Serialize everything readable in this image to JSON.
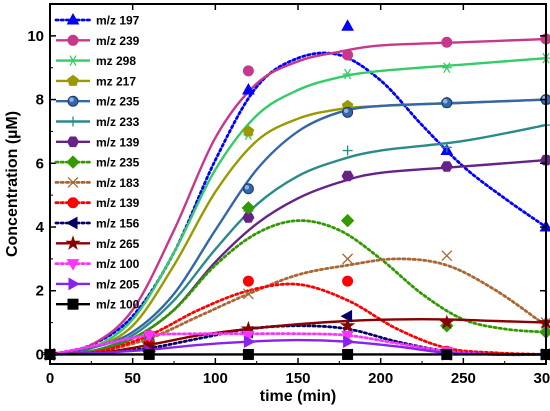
{
  "chart_data": {
    "type": "line",
    "xlabel": "time (min)",
    "ylabel": "Concentration  (µM)",
    "xlim": [
      0,
      300
    ],
    "ylim": [
      -0.3,
      11
    ],
    "x_ticks": [
      0,
      50,
      100,
      150,
      200,
      250,
      300
    ],
    "y_ticks": [
      0,
      2,
      4,
      6,
      8,
      10
    ],
    "grid": false,
    "legend": "top-left",
    "series": [
      {
        "name": "m/z 197",
        "color": "#0000ff",
        "marker": "triangle-up",
        "line": "dotted",
        "points": [
          [
            0,
            0
          ],
          [
            60,
            0.2
          ],
          [
            120,
            8.3
          ],
          [
            180,
            10.3
          ],
          [
            240,
            6.4
          ],
          [
            300,
            4.0
          ]
        ],
        "curve": [
          [
            0,
            0
          ],
          [
            25,
            0.3
          ],
          [
            50,
            1.2
          ],
          [
            75,
            3.2
          ],
          [
            100,
            6.1
          ],
          [
            125,
            8.4
          ],
          [
            150,
            9.3
          ],
          [
            175,
            9.4
          ],
          [
            200,
            8.6
          ],
          [
            225,
            7.2
          ],
          [
            250,
            5.9
          ],
          [
            275,
            4.9
          ],
          [
            300,
            4.0
          ]
        ]
      },
      {
        "name": "m/z 239",
        "color": "#c8378a",
        "marker": "circle",
        "line": "solid",
        "points": [
          [
            0,
            0
          ],
          [
            60,
            0.6
          ],
          [
            120,
            8.9
          ],
          [
            180,
            9.4
          ],
          [
            240,
            9.8
          ],
          [
            300,
            9.9
          ]
        ],
        "curve": [
          [
            0,
            0
          ],
          [
            25,
            0.3
          ],
          [
            50,
            1.4
          ],
          [
            75,
            3.9
          ],
          [
            100,
            6.8
          ],
          [
            125,
            8.5
          ],
          [
            150,
            9.2
          ],
          [
            175,
            9.5
          ],
          [
            200,
            9.7
          ],
          [
            250,
            9.8
          ],
          [
            300,
            9.9
          ]
        ]
      },
      {
        "name": "mz 298",
        "color": "#33cc66",
        "marker": "asterisk",
        "line": "solid",
        "points": [
          [
            0,
            0
          ],
          [
            60,
            0.5
          ],
          [
            120,
            6.9
          ],
          [
            180,
            8.8
          ],
          [
            240,
            9.0
          ],
          [
            300,
            9.3
          ]
        ],
        "curve": [
          [
            0,
            0
          ],
          [
            25,
            0.2
          ],
          [
            50,
            1.1
          ],
          [
            75,
            3.2
          ],
          [
            100,
            5.8
          ],
          [
            125,
            7.5
          ],
          [
            150,
            8.3
          ],
          [
            175,
            8.7
          ],
          [
            200,
            8.9
          ],
          [
            250,
            9.1
          ],
          [
            300,
            9.3
          ]
        ]
      },
      {
        "name": "mz 217",
        "color": "#999900",
        "marker": "pentagon",
        "line": "solid",
        "points": [
          [
            0,
            0
          ],
          [
            60,
            0.4
          ],
          [
            120,
            7.0
          ],
          [
            180,
            7.8
          ],
          [
            240,
            7.9
          ],
          [
            300,
            8.0
          ]
        ],
        "curve": [
          [
            0,
            0
          ],
          [
            25,
            0.2
          ],
          [
            50,
            0.9
          ],
          [
            75,
            2.8
          ],
          [
            100,
            5.1
          ],
          [
            125,
            6.7
          ],
          [
            150,
            7.4
          ],
          [
            175,
            7.7
          ],
          [
            200,
            7.8
          ],
          [
            250,
            7.9
          ],
          [
            300,
            8.0
          ]
        ]
      },
      {
        "name": "m/z 235",
        "color": "#3366aa",
        "marker": "circle-shaded",
        "line": "solid",
        "points": [
          [
            0,
            0
          ],
          [
            60,
            0.4
          ],
          [
            120,
            5.2
          ],
          [
            180,
            7.6
          ],
          [
            240,
            7.9
          ],
          [
            300,
            8.0
          ]
        ],
        "curve": [
          [
            0,
            0
          ],
          [
            25,
            0.2
          ],
          [
            50,
            0.7
          ],
          [
            75,
            1.9
          ],
          [
            100,
            3.9
          ],
          [
            125,
            5.8
          ],
          [
            150,
            7.0
          ],
          [
            175,
            7.6
          ],
          [
            200,
            7.8
          ],
          [
            250,
            7.9
          ],
          [
            300,
            8.0
          ]
        ]
      },
      {
        "name": "m/z 233",
        "color": "#2a8a8a",
        "marker": "plus",
        "line": "solid",
        "points": [
          [
            0,
            0
          ],
          [
            60,
            0.3
          ],
          [
            120,
            4.5
          ],
          [
            180,
            6.4
          ],
          [
            240,
            6.5
          ],
          [
            300,
            7.2
          ]
        ],
        "curve": [
          [
            0,
            0
          ],
          [
            25,
            0.1
          ],
          [
            50,
            0.6
          ],
          [
            75,
            1.7
          ],
          [
            100,
            3.3
          ],
          [
            125,
            4.7
          ],
          [
            150,
            5.6
          ],
          [
            175,
            6.1
          ],
          [
            200,
            6.4
          ],
          [
            250,
            6.7
          ],
          [
            300,
            7.2
          ]
        ]
      },
      {
        "name": "m/z 139",
        "color": "#662288",
        "marker": "hexagon",
        "line": "solid",
        "points": [
          [
            0,
            0
          ],
          [
            60,
            0.3
          ],
          [
            120,
            4.3
          ],
          [
            180,
            5.6
          ],
          [
            240,
            5.9
          ],
          [
            300,
            6.1
          ]
        ],
        "curve": [
          [
            0,
            0
          ],
          [
            25,
            0.1
          ],
          [
            50,
            0.5
          ],
          [
            75,
            1.4
          ],
          [
            100,
            2.9
          ],
          [
            125,
            4.1
          ],
          [
            150,
            4.9
          ],
          [
            175,
            5.4
          ],
          [
            200,
            5.7
          ],
          [
            250,
            5.9
          ],
          [
            300,
            6.1
          ]
        ]
      },
      {
        "name": "m/z 235",
        "color": "#339900",
        "marker": "diamond",
        "line": "dotted",
        "points": [
          [
            0,
            0
          ],
          [
            60,
            0.3
          ],
          [
            120,
            4.6
          ],
          [
            180,
            4.2
          ],
          [
            240,
            0.9
          ],
          [
            300,
            0.7
          ]
        ],
        "curve": [
          [
            0,
            0
          ],
          [
            25,
            0.1
          ],
          [
            50,
            0.5
          ],
          [
            75,
            1.4
          ],
          [
            100,
            2.8
          ],
          [
            125,
            3.8
          ],
          [
            150,
            4.2
          ],
          [
            175,
            3.9
          ],
          [
            200,
            3.0
          ],
          [
            225,
            1.9
          ],
          [
            250,
            1.1
          ],
          [
            275,
            0.8
          ],
          [
            300,
            0.7
          ]
        ]
      },
      {
        "name": "m/z 183",
        "color": "#aa6633",
        "marker": "cross",
        "line": "dotted",
        "points": [
          [
            0,
            0
          ],
          [
            60,
            0.3
          ],
          [
            120,
            1.9
          ],
          [
            180,
            3.0
          ],
          [
            240,
            3.1
          ],
          [
            300,
            1.0
          ]
        ],
        "curve": [
          [
            0,
            0
          ],
          [
            30,
            0.1
          ],
          [
            60,
            0.5
          ],
          [
            90,
            1.2
          ],
          [
            120,
            1.9
          ],
          [
            150,
            2.5
          ],
          [
            180,
            2.8
          ],
          [
            210,
            3.0
          ],
          [
            240,
            2.8
          ],
          [
            270,
            2.0
          ],
          [
            300,
            0.9
          ]
        ]
      },
      {
        "name": "m/z 139",
        "color": "#ff0000",
        "marker": "circle",
        "line": "dotted",
        "points": [
          [
            0,
            0
          ],
          [
            60,
            0.3
          ],
          [
            120,
            2.3
          ],
          [
            180,
            2.3
          ],
          [
            240,
            0.1
          ],
          [
            300,
            0.0
          ]
        ],
        "curve": [
          [
            0,
            0
          ],
          [
            30,
            0.1
          ],
          [
            60,
            0.6
          ],
          [
            90,
            1.4
          ],
          [
            120,
            2.0
          ],
          [
            150,
            2.2
          ],
          [
            180,
            1.7
          ],
          [
            210,
            0.8
          ],
          [
            240,
            0.2
          ],
          [
            270,
            0.05
          ],
          [
            300,
            0.0
          ]
        ]
      },
      {
        "name": "m/z 156",
        "color": "#000066",
        "marker": "triangle-left",
        "line": "dotted",
        "points": [
          [
            0,
            0
          ],
          [
            60,
            0.1
          ],
          [
            120,
            0.7
          ],
          [
            180,
            1.2
          ],
          [
            240,
            0.0
          ],
          [
            300,
            0.0
          ]
        ],
        "curve": [
          [
            0,
            0
          ],
          [
            30,
            0.05
          ],
          [
            60,
            0.2
          ],
          [
            90,
            0.5
          ],
          [
            120,
            0.8
          ],
          [
            150,
            0.9
          ],
          [
            180,
            0.8
          ],
          [
            210,
            0.4
          ],
          [
            240,
            0.1
          ],
          [
            270,
            0.0
          ],
          [
            300,
            0.0
          ]
        ]
      },
      {
        "name": "m/z 265",
        "color": "#880000",
        "marker": "star",
        "line": "solid",
        "points": [
          [
            0,
            0
          ],
          [
            60,
            0.3
          ],
          [
            120,
            0.8
          ],
          [
            180,
            0.9
          ],
          [
            240,
            1.0
          ],
          [
            300,
            1.0
          ]
        ],
        "curve": [
          [
            0,
            0
          ],
          [
            30,
            0.05
          ],
          [
            60,
            0.3
          ],
          [
            90,
            0.6
          ],
          [
            120,
            0.8
          ],
          [
            150,
            0.95
          ],
          [
            180,
            1.05
          ],
          [
            210,
            1.1
          ],
          [
            240,
            1.1
          ],
          [
            270,
            1.05
          ],
          [
            300,
            1.0
          ]
        ]
      },
      {
        "name": "m/z 100",
        "color": "#ff33ff",
        "marker": "triangle-down",
        "line": "dotted",
        "points": [
          [
            0,
            0
          ],
          [
            60,
            0.6
          ],
          [
            120,
            0.6
          ],
          [
            180,
            0.6
          ],
          [
            240,
            0.1
          ],
          [
            300,
            0.0
          ]
        ],
        "curve": [
          [
            0,
            0
          ],
          [
            30,
            0.3
          ],
          [
            60,
            0.6
          ],
          [
            90,
            0.65
          ],
          [
            120,
            0.65
          ],
          [
            150,
            0.65
          ],
          [
            180,
            0.6
          ],
          [
            210,
            0.35
          ],
          [
            240,
            0.1
          ],
          [
            270,
            0.0
          ],
          [
            300,
            0.0
          ]
        ]
      },
      {
        "name": "m/z 205",
        "color": "#8822ee",
        "marker": "triangle-right",
        "line": "solid",
        "points": [
          [
            0,
            0
          ],
          [
            60,
            0.1
          ],
          [
            120,
            0.4
          ],
          [
            180,
            0.4
          ],
          [
            240,
            0.0
          ],
          [
            300,
            0.0
          ]
        ],
        "curve": [
          [
            0,
            0
          ],
          [
            30,
            0.05
          ],
          [
            60,
            0.15
          ],
          [
            90,
            0.3
          ],
          [
            120,
            0.4
          ],
          [
            150,
            0.45
          ],
          [
            180,
            0.4
          ],
          [
            210,
            0.25
          ],
          [
            240,
            0.05
          ],
          [
            270,
            0.0
          ],
          [
            300,
            0.0
          ]
        ]
      },
      {
        "name": "m/z 100",
        "color": "#000000",
        "marker": "square",
        "line": "solid",
        "points": [
          [
            0,
            0
          ],
          [
            60,
            0.0
          ],
          [
            120,
            0.0
          ],
          [
            180,
            0.0
          ],
          [
            240,
            0.0
          ],
          [
            300,
            0.0
          ]
        ],
        "curve": [
          [
            0,
            0
          ],
          [
            300,
            0
          ]
        ]
      }
    ]
  }
}
